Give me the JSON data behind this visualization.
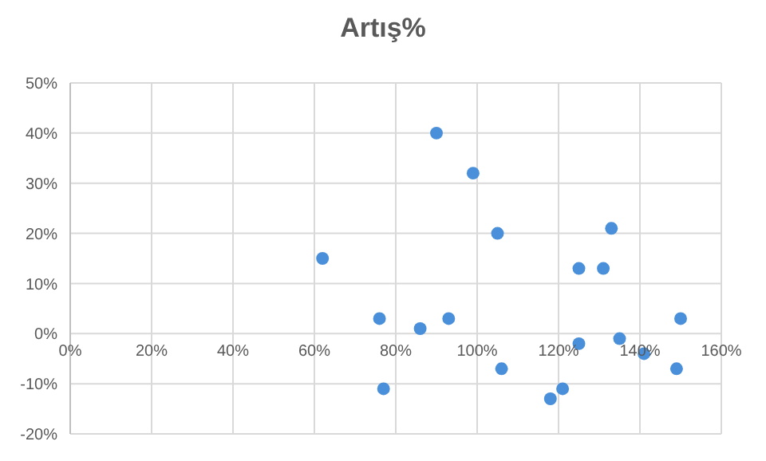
{
  "chart_data": {
    "type": "scatter",
    "title": "Artış%",
    "x": [
      62,
      76,
      77,
      86,
      90,
      93,
      99,
      105,
      106,
      118,
      121,
      125,
      125,
      131,
      133,
      135,
      141,
      149,
      150
    ],
    "values": [
      15,
      3,
      -11,
      1,
      40,
      3,
      32,
      20,
      -7,
      -13,
      -11,
      13,
      -2,
      13,
      21,
      -1,
      -4,
      -7,
      3
    ],
    "color": "#4a8fd9",
    "marker": "circle",
    "grid": true,
    "xlim": [
      0,
      160
    ],
    "xticks": [
      {
        "value": 0,
        "label": "0%"
      },
      {
        "value": 20,
        "label": "20%"
      },
      {
        "value": 40,
        "label": "40%"
      },
      {
        "value": 60,
        "label": "60%"
      },
      {
        "value": 80,
        "label": "80%"
      },
      {
        "value": 100,
        "label": "100%"
      },
      {
        "value": 120,
        "label": "120%"
      },
      {
        "value": 140,
        "label": "140%"
      },
      {
        "value": 160,
        "label": "160%"
      }
    ],
    "ylim": [
      -20,
      50
    ],
    "yticks": [
      {
        "value": -20,
        "label": "-20%"
      },
      {
        "value": -10,
        "label": "-10%"
      },
      {
        "value": 0,
        "label": "0%"
      },
      {
        "value": 10,
        "label": "10%"
      },
      {
        "value": 20,
        "label": "20%"
      },
      {
        "value": 30,
        "label": "30%"
      },
      {
        "value": 40,
        "label": "40%"
      },
      {
        "value": 50,
        "label": "50%"
      }
    ]
  }
}
